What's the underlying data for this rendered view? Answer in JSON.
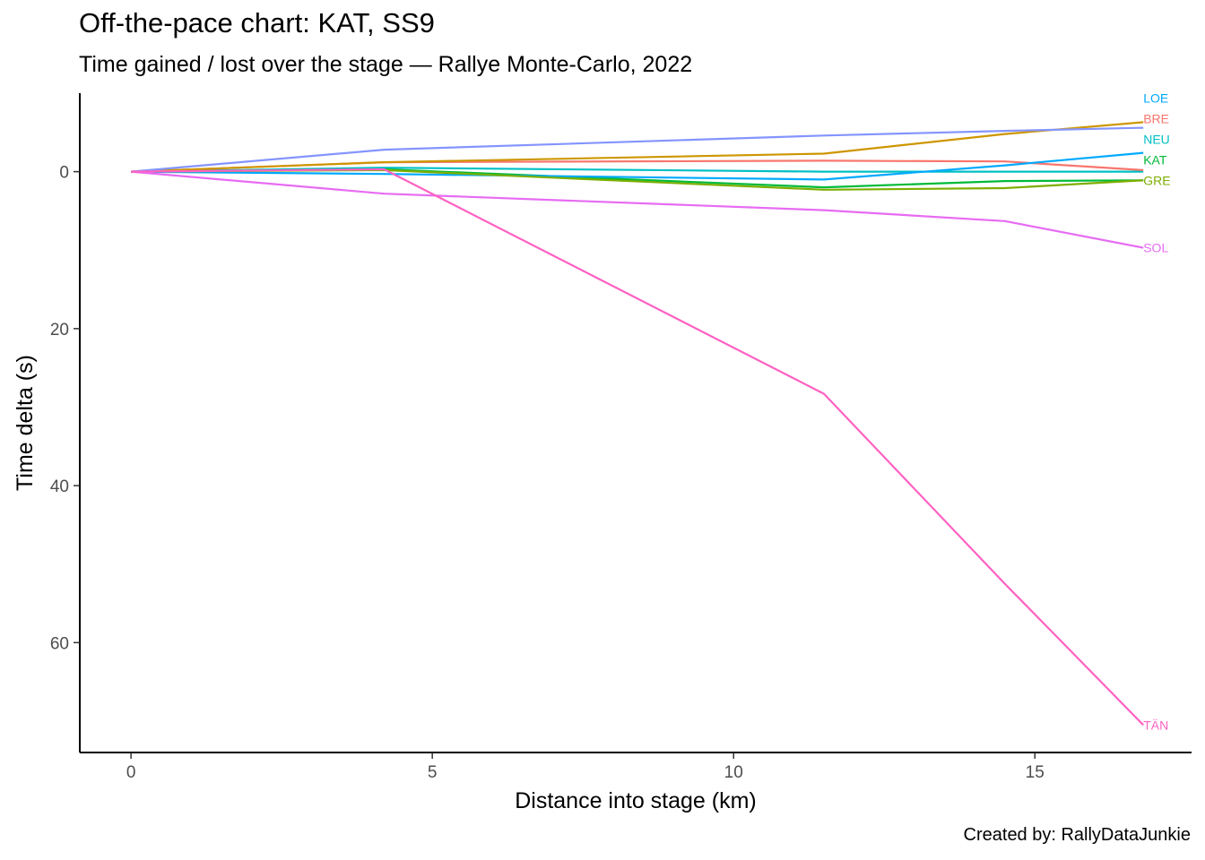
{
  "title": "Off-the-pace chart: KAT, SS9",
  "subtitle": "Time gained / lost over the stage — Rallye Monte-Carlo, 2022",
  "caption": "Created by: RallyDataJunkie",
  "chart_data": {
    "type": "line",
    "title": "Off-the-pace chart: KAT, SS9",
    "subtitle": "Time gained / lost over the stage — Rallye Monte-Carlo, 2022",
    "xlabel": "Distance into stage (km)",
    "ylabel": "Time delta (s)",
    "xlim": [
      -0.85,
      17.6
    ],
    "ylim": [
      -10,
      74
    ],
    "y_reversed": true,
    "grid": false,
    "legend": "direct-labels",
    "x_ticks": [
      0,
      5,
      10,
      15
    ],
    "y_ticks": [
      0,
      20,
      40,
      60
    ],
    "series": [
      {
        "name": "NEU",
        "color": "#00BFC4",
        "x": [
          0,
          4.2,
          11.5,
          16.8
        ],
        "y": [
          0,
          -0.5,
          0,
          0
        ]
      },
      {
        "name": "BRE",
        "color": "#F8766D",
        "x": [
          0,
          4.2,
          11.5,
          14.5,
          16.8
        ],
        "y": [
          0,
          -1.2,
          -1.4,
          -1.3,
          -0.2
        ]
      },
      {
        "name": "KAT",
        "color": "#00BA38",
        "x": [
          0,
          4.2,
          11.5,
          14.5,
          16.8
        ],
        "y": [
          0,
          -0.3,
          2.0,
          1.2,
          1.1
        ]
      },
      {
        "name": "LOE",
        "color": "#00A9FF",
        "x": [
          0,
          4.2,
          11.5,
          14.5,
          16.8
        ],
        "y": [
          0,
          0.3,
          1.0,
          -0.8,
          -2.4
        ]
      },
      {
        "name": "GRE",
        "color": "#7CAE00",
        "x": [
          0,
          4.2,
          11.5,
          14.5,
          16.8
        ],
        "y": [
          0,
          -0.2,
          2.3,
          2.1,
          1.1
        ]
      },
      {
        "name": "",
        "color": "#CD9600",
        "x": [
          0,
          4.2,
          11.5,
          14.5,
          16.8
        ],
        "y": [
          0,
          -1.2,
          -2.3,
          -4.8,
          -6.3
        ]
      },
      {
        "name": "",
        "color": "#8494FF",
        "x": [
          0,
          4.2,
          11.5,
          14.5,
          16.8
        ],
        "y": [
          0,
          -2.8,
          -4.6,
          -5.2,
          -5.6
        ]
      },
      {
        "name": "SOL",
        "color": "#E76BF3",
        "x": [
          0,
          4.2,
          11.5,
          14.5,
          16.8
        ],
        "y": [
          0,
          2.8,
          4.9,
          6.3,
          9.7
        ]
      },
      {
        "name": "TÄN",
        "color": "#FF61C3",
        "x": [
          0,
          4.2,
          11.5,
          14.5,
          16.8
        ],
        "y": [
          0,
          -0.3,
          28.3,
          52.5,
          70.5
        ]
      }
    ]
  }
}
